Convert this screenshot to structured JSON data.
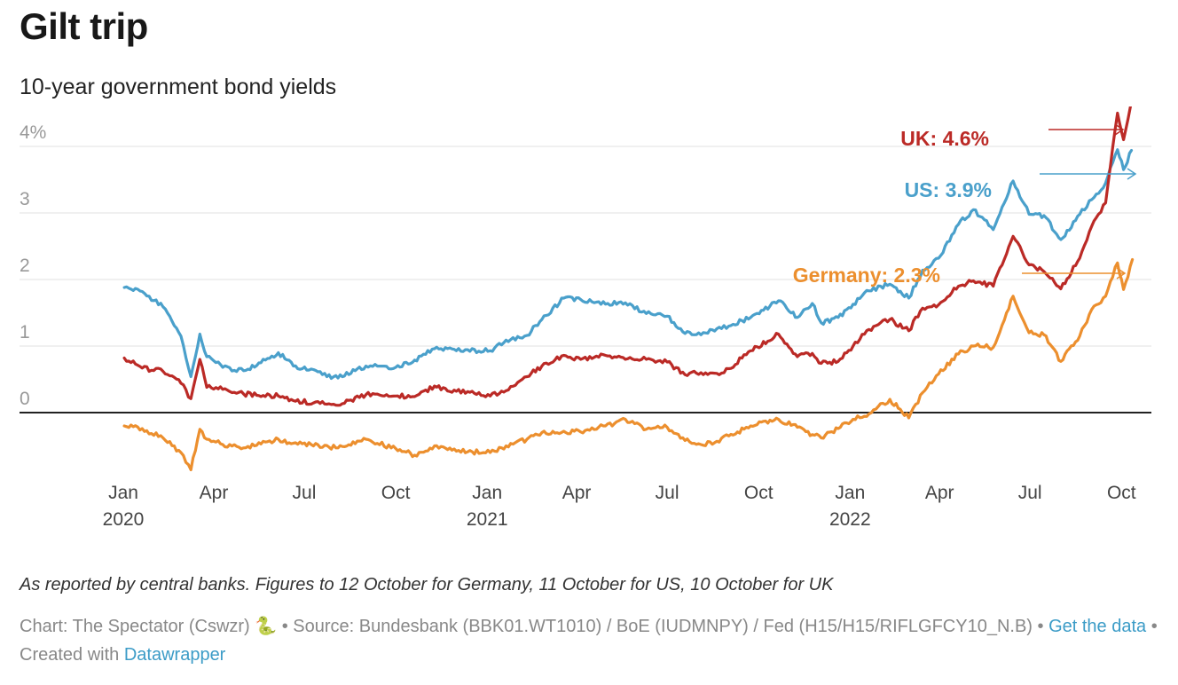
{
  "title": "Gilt trip",
  "subtitle": "10-year government bond yields",
  "notes": "As reported by central banks. Figures to 12 October for Germany, 11 October for US, 10 October for UK",
  "byline": {
    "chart": "Chart: The Spectator (Cswzr) 🐍",
    "sep1": " • ",
    "source": "Source: Bundesbank (BBK01.WT1010) / BoE (IUDMNPY) / Fed (H15/H15/RIFLGFCY10_N.B)",
    "sep2": " • ",
    "get_data": "Get the data",
    "sep3": " • ",
    "created": "Created with ",
    "tool": "Datawrapper"
  },
  "chart_data": {
    "type": "line",
    "ylim": [
      -1.0,
      4.6
    ],
    "yticks": [
      {
        "value": 4,
        "label": "4%"
      },
      {
        "value": 3,
        "label": "3"
      },
      {
        "value": 2,
        "label": "2"
      },
      {
        "value": 1,
        "label": "1"
      },
      {
        "value": 0,
        "label": "0"
      }
    ],
    "xlim": [
      "2020-01-01",
      "2022-10-15"
    ],
    "xticks": [
      {
        "date": "2020-01-01",
        "label": "Jan",
        "year": "2020"
      },
      {
        "date": "2020-04-01",
        "label": "Apr",
        "year": ""
      },
      {
        "date": "2020-07-01",
        "label": "Jul",
        "year": ""
      },
      {
        "date": "2020-10-01",
        "label": "Oct",
        "year": ""
      },
      {
        "date": "2021-01-01",
        "label": "Jan",
        "year": "2021"
      },
      {
        "date": "2021-04-01",
        "label": "Apr",
        "year": ""
      },
      {
        "date": "2021-07-01",
        "label": "Jul",
        "year": ""
      },
      {
        "date": "2021-10-01",
        "label": "Oct",
        "year": ""
      },
      {
        "date": "2022-01-01",
        "label": "Jan",
        "year": "2022"
      },
      {
        "date": "2022-04-01",
        "label": "Apr",
        "year": ""
      },
      {
        "date": "2022-07-01",
        "label": "Jul",
        "year": ""
      },
      {
        "date": "2022-10-01",
        "label": "Oct",
        "year": ""
      }
    ],
    "grid": true,
    "series": [
      {
        "name": "US",
        "label": "US: 3.9%",
        "color": "#4aa0cb",
        "x": [
          "2020-01-02",
          "2020-01-20",
          "2020-02-10",
          "2020-02-28",
          "2020-03-09",
          "2020-03-18",
          "2020-03-25",
          "2020-04-10",
          "2020-05-01",
          "2020-06-05",
          "2020-06-20",
          "2020-08-04",
          "2020-09-01",
          "2020-10-01",
          "2020-10-20",
          "2020-11-09",
          "2020-12-01",
          "2021-01-04",
          "2021-01-20",
          "2021-02-10",
          "2021-02-25",
          "2021-03-19",
          "2021-04-05",
          "2021-04-30",
          "2021-05-20",
          "2021-06-10",
          "2021-07-01",
          "2021-07-19",
          "2021-08-04",
          "2021-08-20",
          "2021-09-01",
          "2021-09-23",
          "2021-10-21",
          "2021-11-09",
          "2021-11-24",
          "2021-12-03",
          "2021-12-20",
          "2022-01-04",
          "2022-01-20",
          "2022-02-10",
          "2022-03-01",
          "2022-03-15",
          "2022-03-31",
          "2022-04-20",
          "2022-05-05",
          "2022-05-25",
          "2022-06-14",
          "2022-06-30",
          "2022-07-15",
          "2022-08-01",
          "2022-08-20",
          "2022-09-01",
          "2022-09-15",
          "2022-09-27",
          "2022-10-03",
          "2022-10-11"
        ],
        "values": [
          1.88,
          1.82,
          1.59,
          1.15,
          0.54,
          1.18,
          0.84,
          0.68,
          0.63,
          0.9,
          0.7,
          0.52,
          0.7,
          0.68,
          0.79,
          0.96,
          0.93,
          0.93,
          1.09,
          1.16,
          1.4,
          1.72,
          1.7,
          1.63,
          1.65,
          1.49,
          1.45,
          1.19,
          1.17,
          1.26,
          1.3,
          1.43,
          1.68,
          1.43,
          1.64,
          1.35,
          1.43,
          1.63,
          1.83,
          1.93,
          1.72,
          2.14,
          2.32,
          2.83,
          3.05,
          2.75,
          3.48,
          2.98,
          2.96,
          2.6,
          2.98,
          3.2,
          3.45,
          3.95,
          3.65,
          3.94
        ]
      },
      {
        "name": "UK",
        "label": "UK: 4.6%",
        "color": "#bb2a26",
        "x": [
          "2020-01-02",
          "2020-01-20",
          "2020-02-10",
          "2020-02-28",
          "2020-03-09",
          "2020-03-18",
          "2020-03-25",
          "2020-04-10",
          "2020-05-01",
          "2020-06-05",
          "2020-06-20",
          "2020-08-04",
          "2020-09-01",
          "2020-10-01",
          "2020-10-20",
          "2020-11-09",
          "2020-12-01",
          "2021-01-04",
          "2021-01-20",
          "2021-02-10",
          "2021-02-25",
          "2021-03-19",
          "2021-04-05",
          "2021-04-30",
          "2021-05-20",
          "2021-06-10",
          "2021-07-01",
          "2021-07-19",
          "2021-08-04",
          "2021-08-20",
          "2021-09-01",
          "2021-09-23",
          "2021-10-21",
          "2021-11-09",
          "2021-11-24",
          "2021-12-03",
          "2021-12-20",
          "2022-01-04",
          "2022-01-20",
          "2022-02-10",
          "2022-03-01",
          "2022-03-15",
          "2022-03-31",
          "2022-04-20",
          "2022-05-05",
          "2022-05-25",
          "2022-06-14",
          "2022-06-30",
          "2022-07-15",
          "2022-08-01",
          "2022-08-20",
          "2022-09-01",
          "2022-09-15",
          "2022-09-27",
          "2022-10-03",
          "2022-10-10"
        ],
        "values": [
          0.82,
          0.67,
          0.62,
          0.44,
          0.21,
          0.8,
          0.38,
          0.35,
          0.28,
          0.25,
          0.18,
          0.11,
          0.27,
          0.25,
          0.24,
          0.4,
          0.32,
          0.25,
          0.33,
          0.54,
          0.7,
          0.86,
          0.8,
          0.86,
          0.8,
          0.8,
          0.76,
          0.57,
          0.6,
          0.59,
          0.66,
          0.93,
          1.18,
          0.84,
          0.89,
          0.74,
          0.77,
          1.0,
          1.25,
          1.4,
          1.23,
          1.57,
          1.62,
          1.9,
          1.98,
          1.9,
          2.65,
          2.22,
          2.12,
          1.86,
          2.32,
          2.8,
          3.15,
          4.5,
          4.1,
          4.6
        ]
      },
      {
        "name": "Germany",
        "label": "Germany: 2.3%",
        "color": "#ec8f2e",
        "x": [
          "2020-01-02",
          "2020-01-20",
          "2020-02-10",
          "2020-02-28",
          "2020-03-09",
          "2020-03-18",
          "2020-03-25",
          "2020-04-10",
          "2020-05-01",
          "2020-06-05",
          "2020-06-20",
          "2020-08-04",
          "2020-09-01",
          "2020-10-01",
          "2020-10-20",
          "2020-11-09",
          "2020-12-01",
          "2021-01-04",
          "2021-01-20",
          "2021-02-10",
          "2021-02-25",
          "2021-03-19",
          "2021-04-05",
          "2021-04-30",
          "2021-05-20",
          "2021-06-10",
          "2021-07-01",
          "2021-07-19",
          "2021-08-04",
          "2021-08-20",
          "2021-09-01",
          "2021-09-23",
          "2021-10-21",
          "2021-11-09",
          "2021-11-24",
          "2021-12-03",
          "2021-12-20",
          "2022-01-04",
          "2022-01-20",
          "2022-02-10",
          "2022-03-01",
          "2022-03-15",
          "2022-03-31",
          "2022-04-20",
          "2022-05-05",
          "2022-05-25",
          "2022-06-14",
          "2022-06-30",
          "2022-07-15",
          "2022-08-01",
          "2022-08-20",
          "2022-09-01",
          "2022-09-15",
          "2022-09-27",
          "2022-10-03",
          "2022-10-12"
        ],
        "values": [
          -0.2,
          -0.24,
          -0.38,
          -0.6,
          -0.86,
          -0.25,
          -0.4,
          -0.48,
          -0.53,
          -0.4,
          -0.46,
          -0.53,
          -0.4,
          -0.54,
          -0.64,
          -0.5,
          -0.58,
          -0.6,
          -0.5,
          -0.4,
          -0.3,
          -0.28,
          -0.29,
          -0.2,
          -0.1,
          -0.25,
          -0.22,
          -0.42,
          -0.48,
          -0.43,
          -0.35,
          -0.2,
          -0.1,
          -0.22,
          -0.33,
          -0.38,
          -0.24,
          -0.1,
          -0.02,
          0.2,
          -0.08,
          0.3,
          0.58,
          0.88,
          1.0,
          0.98,
          1.75,
          1.2,
          1.17,
          0.77,
          1.15,
          1.55,
          1.75,
          2.25,
          1.85,
          2.3
        ]
      }
    ]
  }
}
